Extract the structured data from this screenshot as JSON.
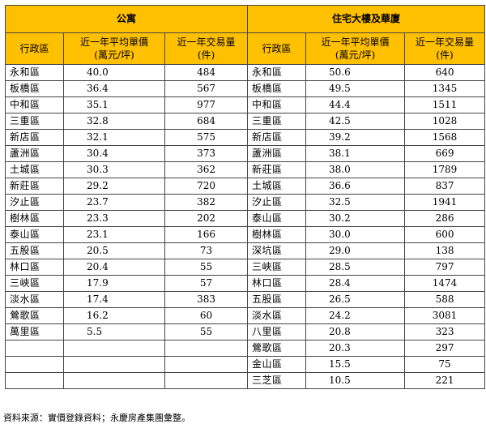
{
  "groups": {
    "apartment": "公寓",
    "residential": "住宅大樓及華廈"
  },
  "headers": {
    "district": "行政區",
    "price_line1": "近一年平均單價",
    "price_line2": "(萬元/坪)",
    "volume_line1": "近一年交易量",
    "volume_line2": "(件)"
  },
  "rows": [
    {
      "left": {
        "district": "永和區",
        "price": "40.0",
        "volume": "484"
      },
      "right": {
        "district": "永和區",
        "price": "50.6",
        "volume": "640"
      }
    },
    {
      "left": {
        "district": "板橋區",
        "price": "36.4",
        "volume": "567"
      },
      "right": {
        "district": "板橋區",
        "price": "49.5",
        "volume": "1345"
      }
    },
    {
      "left": {
        "district": "中和區",
        "price": "35.1",
        "volume": "977"
      },
      "right": {
        "district": "中和區",
        "price": "44.4",
        "volume": "1511"
      }
    },
    {
      "left": {
        "district": "三重區",
        "price": "32.8",
        "volume": "684"
      },
      "right": {
        "district": "三重區",
        "price": "42.5",
        "volume": "1028"
      }
    },
    {
      "left": {
        "district": "新店區",
        "price": "32.1",
        "volume": "575"
      },
      "right": {
        "district": "新店區",
        "price": "39.2",
        "volume": "1568"
      }
    },
    {
      "left": {
        "district": "蘆洲區",
        "price": "30.4",
        "volume": "373"
      },
      "right": {
        "district": "蘆洲區",
        "price": "38.1",
        "volume": "669"
      }
    },
    {
      "left": {
        "district": "土城區",
        "price": "30.3",
        "volume": "362"
      },
      "right": {
        "district": "新莊區",
        "price": "38.0",
        "volume": "1789"
      }
    },
    {
      "left": {
        "district": "新莊區",
        "price": "29.2",
        "volume": "720"
      },
      "right": {
        "district": "土城區",
        "price": "36.6",
        "volume": "837"
      }
    },
    {
      "left": {
        "district": "汐止區",
        "price": "23.7",
        "volume": "382"
      },
      "right": {
        "district": "汐止區",
        "price": "32.5",
        "volume": "1941"
      }
    },
    {
      "left": {
        "district": "樹林區",
        "price": "23.3",
        "volume": "202"
      },
      "right": {
        "district": "泰山區",
        "price": "30.2",
        "volume": "286"
      }
    },
    {
      "left": {
        "district": "泰山區",
        "price": "23.1",
        "volume": "166"
      },
      "right": {
        "district": "樹林區",
        "price": "30.0",
        "volume": "600"
      }
    },
    {
      "left": {
        "district": "五股區",
        "price": "20.5",
        "volume": "73"
      },
      "right": {
        "district": "深坑區",
        "price": "29.0",
        "volume": "138"
      }
    },
    {
      "left": {
        "district": "林口區",
        "price": "20.4",
        "volume": "55"
      },
      "right": {
        "district": "三峽區",
        "price": "28.5",
        "volume": "797"
      }
    },
    {
      "left": {
        "district": "三峽區",
        "price": "17.9",
        "volume": "57"
      },
      "right": {
        "district": "林口區",
        "price": "28.4",
        "volume": "1474"
      }
    },
    {
      "left": {
        "district": "淡水區",
        "price": "17.4",
        "volume": "383"
      },
      "right": {
        "district": "五股區",
        "price": "26.5",
        "volume": "588"
      }
    },
    {
      "left": {
        "district": "鶯歌區",
        "price": "16.2",
        "volume": "60"
      },
      "right": {
        "district": "淡水區",
        "price": "24.2",
        "volume": "3081"
      }
    },
    {
      "left": {
        "district": "萬里區",
        "price": "5.5",
        "volume": "55"
      },
      "right": {
        "district": "八里區",
        "price": "20.8",
        "volume": "323"
      }
    },
    {
      "left": {
        "district": "",
        "price": "",
        "volume": ""
      },
      "right": {
        "district": "鶯歌區",
        "price": "20.3",
        "volume": "297"
      }
    },
    {
      "left": {
        "district": "",
        "price": "",
        "volume": ""
      },
      "right": {
        "district": "金山區",
        "price": "15.5",
        "volume": "75"
      }
    },
    {
      "left": {
        "district": "",
        "price": "",
        "volume": ""
      },
      "right": {
        "district": "三芝區",
        "price": "10.5",
        "volume": "221"
      }
    }
  ],
  "source_note": "資料來源：實價登錄資料；永慶房產集團彙整。",
  "colors": {
    "header_fill": "#ffc000",
    "border": "#444444"
  }
}
